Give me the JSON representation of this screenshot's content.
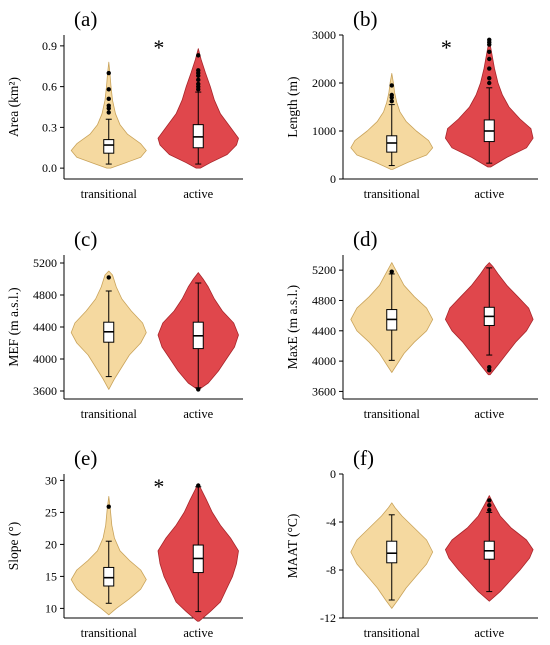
{
  "figure": {
    "categories": [
      "transitional",
      "active"
    ],
    "colors": {
      "transitional": "#f5d9a0",
      "active": "#e0474c",
      "transitional_edge": "#c9a35a",
      "active_edge": "#a8262b"
    }
  },
  "chart_data": [
    {
      "type": "violin",
      "panel_label": "(a)",
      "ylabel": "Area (km²)",
      "ylim": [
        -0.08,
        0.98
      ],
      "yticks": [
        "0.0",
        "0.3",
        "0.6",
        "0.9"
      ],
      "significance": "*",
      "categories": [
        "transitional",
        "active"
      ],
      "series": [
        {
          "name": "transitional",
          "kde_max_width": 0.42,
          "kde": [
            [
              0.0,
              0.05
            ],
            [
              0.03,
              0.35
            ],
            [
              0.08,
              0.85
            ],
            [
              0.13,
              1.0
            ],
            [
              0.18,
              0.85
            ],
            [
              0.25,
              0.5
            ],
            [
              0.32,
              0.3
            ],
            [
              0.4,
              0.18
            ],
            [
              0.5,
              0.1
            ],
            [
              0.6,
              0.06
            ],
            [
              0.7,
              0.03
            ],
            [
              0.78,
              0.0
            ]
          ],
          "box": {
            "whisker_low": 0.03,
            "q1": 0.11,
            "median": 0.17,
            "q3": 0.21,
            "whisker_high": 0.36
          },
          "outliers": [
            0.41,
            0.44,
            0.46,
            0.51,
            0.58,
            0.7
          ]
        },
        {
          "name": "active",
          "kde_max_width": 0.45,
          "kde": [
            [
              0.0,
              0.05
            ],
            [
              0.04,
              0.3
            ],
            [
              0.1,
              0.72
            ],
            [
              0.17,
              0.95
            ],
            [
              0.22,
              1.0
            ],
            [
              0.3,
              0.8
            ],
            [
              0.4,
              0.55
            ],
            [
              0.5,
              0.4
            ],
            [
              0.6,
              0.3
            ],
            [
              0.7,
              0.18
            ],
            [
              0.8,
              0.07
            ],
            [
              0.88,
              0.0
            ]
          ],
          "box": {
            "whisker_low": 0.03,
            "q1": 0.15,
            "median": 0.23,
            "q3": 0.32,
            "whisker_high": 0.56
          },
          "outliers": [
            0.58,
            0.6,
            0.62,
            0.65,
            0.68,
            0.7,
            0.72,
            0.83
          ]
        }
      ]
    },
    {
      "type": "violin",
      "panel_label": "(b)",
      "ylabel": "Length (m)",
      "ylim": [
        0,
        3000
      ],
      "yticks": [
        "0",
        "1000",
        "2000",
        "3000"
      ],
      "significance": "*",
      "categories": [
        "transitional",
        "active"
      ],
      "series": [
        {
          "name": "transitional",
          "kde_max_width": 0.42,
          "kde": [
            [
              200,
              0.02
            ],
            [
              350,
              0.4
            ],
            [
              500,
              0.85
            ],
            [
              650,
              1.0
            ],
            [
              800,
              0.9
            ],
            [
              1000,
              0.6
            ],
            [
              1200,
              0.35
            ],
            [
              1400,
              0.2
            ],
            [
              1600,
              0.12
            ],
            [
              1800,
              0.07
            ],
            [
              2000,
              0.04
            ],
            [
              2200,
              0.0
            ]
          ],
          "box": {
            "whisker_low": 280,
            "q1": 560,
            "median": 750,
            "q3": 900,
            "whisker_high": 1550
          },
          "outliers": [
            1620,
            1700,
            1750,
            1950
          ]
        },
        {
          "name": "active",
          "kde_max_width": 0.45,
          "kde": [
            [
              250,
              0.03
            ],
            [
              450,
              0.4
            ],
            [
              650,
              0.85
            ],
            [
              850,
              1.0
            ],
            [
              1050,
              0.95
            ],
            [
              1250,
              0.7
            ],
            [
              1500,
              0.45
            ],
            [
              1750,
              0.3
            ],
            [
              2000,
              0.2
            ],
            [
              2300,
              0.12
            ],
            [
              2600,
              0.06
            ],
            [
              2900,
              0.0
            ]
          ],
          "box": {
            "whisker_low": 330,
            "q1": 780,
            "median": 1000,
            "q3": 1230,
            "whisker_high": 1900
          },
          "outliers": [
            2000,
            2100,
            2300,
            2500,
            2650,
            2800,
            2850,
            2900
          ]
        }
      ]
    },
    {
      "type": "violin",
      "panel_label": "(c)",
      "ylabel": "MEF (m a.s.l.)",
      "ylim": [
        3500,
        5300
      ],
      "yticks": [
        "3600",
        "4000",
        "4400",
        "4800",
        "5200"
      ],
      "significance": "",
      "categories": [
        "transitional",
        "active"
      ],
      "series": [
        {
          "name": "transitional",
          "kde_max_width": 0.42,
          "kde": [
            [
              3620,
              0.0
            ],
            [
              3750,
              0.15
            ],
            [
              3900,
              0.35
            ],
            [
              4050,
              0.55
            ],
            [
              4200,
              0.85
            ],
            [
              4330,
              1.0
            ],
            [
              4450,
              0.9
            ],
            [
              4600,
              0.6
            ],
            [
              4750,
              0.35
            ],
            [
              4900,
              0.2
            ],
            [
              5050,
              0.1
            ],
            [
              5100,
              0.0
            ]
          ],
          "box": {
            "whisker_low": 3780,
            "q1": 4210,
            "median": 4340,
            "q3": 4460,
            "whisker_high": 4850
          },
          "outliers": [
            5020
          ]
        },
        {
          "name": "active",
          "kde_max_width": 0.45,
          "kde": [
            [
              3620,
              0.02
            ],
            [
              3700,
              0.25
            ],
            [
              3850,
              0.5
            ],
            [
              4000,
              0.7
            ],
            [
              4150,
              0.9
            ],
            [
              4300,
              1.0
            ],
            [
              4450,
              0.88
            ],
            [
              4600,
              0.6
            ],
            [
              4750,
              0.4
            ],
            [
              4900,
              0.25
            ],
            [
              5000,
              0.12
            ],
            [
              5080,
              0.0
            ]
          ],
          "box": {
            "whisker_low": 3640,
            "q1": 4130,
            "median": 4290,
            "q3": 4460,
            "whisker_high": 4950
          },
          "outliers": [
            3620
          ]
        }
      ]
    },
    {
      "type": "violin",
      "panel_label": "(d)",
      "ylabel": "MaxE (m a.s.l.)",
      "ylim": [
        3500,
        5400
      ],
      "yticks": [
        "3600",
        "4000",
        "4400",
        "4800",
        "5200"
      ],
      "significance": "",
      "categories": [
        "transitional",
        "active"
      ],
      "series": [
        {
          "name": "transitional",
          "kde_max_width": 0.42,
          "kde": [
            [
              3850,
              0.0
            ],
            [
              3950,
              0.12
            ],
            [
              4100,
              0.3
            ],
            [
              4250,
              0.55
            ],
            [
              4400,
              0.85
            ],
            [
              4550,
              1.0
            ],
            [
              4700,
              0.85
            ],
            [
              4850,
              0.55
            ],
            [
              5000,
              0.3
            ],
            [
              5150,
              0.15
            ],
            [
              5250,
              0.05
            ],
            [
              5300,
              0.0
            ]
          ],
          "box": {
            "whisker_low": 4010,
            "q1": 4410,
            "median": 4550,
            "q3": 4680,
            "whisker_high": 5150
          },
          "outliers": [
            5180
          ]
        },
        {
          "name": "active",
          "kde_max_width": 0.45,
          "kde": [
            [
              3820,
              0.02
            ],
            [
              3950,
              0.2
            ],
            [
              4100,
              0.4
            ],
            [
              4250,
              0.6
            ],
            [
              4400,
              0.85
            ],
            [
              4550,
              1.0
            ],
            [
              4700,
              0.9
            ],
            [
              4850,
              0.65
            ],
            [
              5000,
              0.4
            ],
            [
              5150,
              0.2
            ],
            [
              5250,
              0.08
            ],
            [
              5300,
              0.0
            ]
          ],
          "box": {
            "whisker_low": 4080,
            "q1": 4470,
            "median": 4590,
            "q3": 4710,
            "whisker_high": 5230
          },
          "outliers": [
            3880,
            3920
          ]
        }
      ]
    },
    {
      "type": "violin",
      "panel_label": "(e)",
      "ylabel": "Slope (°)",
      "ylim": [
        8.5,
        31
      ],
      "yticks": [
        "10",
        "15",
        "20",
        "25",
        "30"
      ],
      "significance": "*",
      "categories": [
        "transitional",
        "active"
      ],
      "series": [
        {
          "name": "transitional",
          "kde_max_width": 0.42,
          "kde": [
            [
              9,
              0.0
            ],
            [
              10,
              0.2
            ],
            [
              11.5,
              0.55
            ],
            [
              13,
              0.85
            ],
            [
              14.5,
              1.0
            ],
            [
              16,
              0.85
            ],
            [
              17.5,
              0.55
            ],
            [
              19,
              0.3
            ],
            [
              21,
              0.15
            ],
            [
              23,
              0.08
            ],
            [
              25.5,
              0.04
            ],
            [
              27.5,
              0.0
            ]
          ],
          "box": {
            "whisker_low": 10.8,
            "q1": 13.5,
            "median": 14.8,
            "q3": 16.4,
            "whisker_high": 20.5
          },
          "outliers": [
            25.9
          ]
        },
        {
          "name": "active",
          "kde_max_width": 0.45,
          "kde": [
            [
              8,
              0.02
            ],
            [
              9.5,
              0.3
            ],
            [
              11,
              0.55
            ],
            [
              13,
              0.7
            ],
            [
              15,
              0.85
            ],
            [
              17,
              0.95
            ],
            [
              19,
              1.0
            ],
            [
              21,
              0.8
            ],
            [
              23,
              0.55
            ],
            [
              25,
              0.35
            ],
            [
              27,
              0.2
            ],
            [
              29.5,
              0.0
            ]
          ],
          "box": {
            "whisker_low": 9.5,
            "q1": 15.6,
            "median": 17.8,
            "q3": 19.9,
            "whisker_high": 29.0
          },
          "outliers": [
            29.2
          ]
        }
      ]
    },
    {
      "type": "violin",
      "panel_label": "(f)",
      "ylabel": "MAAT (°C)",
      "ylim": [
        -12,
        0
      ],
      "yticks": [
        "-12",
        "-8",
        "-4",
        "0"
      ],
      "significance": "",
      "categories": [
        "transitional",
        "active"
      ],
      "series": [
        {
          "name": "transitional",
          "kde_max_width": 0.42,
          "kde": [
            [
              -11.2,
              0.0
            ],
            [
              -10.5,
              0.15
            ],
            [
              -9.5,
              0.35
            ],
            [
              -8.5,
              0.6
            ],
            [
              -7.5,
              0.85
            ],
            [
              -6.5,
              1.0
            ],
            [
              -5.5,
              0.85
            ],
            [
              -4.5,
              0.55
            ],
            [
              -3.5,
              0.25
            ],
            [
              -2.8,
              0.08
            ],
            [
              -2.4,
              0.0
            ]
          ],
          "box": {
            "whisker_low": -10.5,
            "q1": -7.4,
            "median": -6.6,
            "q3": -5.6,
            "whisker_high": -3.4
          },
          "outliers": []
        },
        {
          "name": "active",
          "kde_max_width": 0.45,
          "kde": [
            [
              -10.6,
              0.0
            ],
            [
              -9.8,
              0.25
            ],
            [
              -9.0,
              0.45
            ],
            [
              -8.0,
              0.7
            ],
            [
              -7.0,
              0.92
            ],
            [
              -6.3,
              1.0
            ],
            [
              -5.5,
              0.85
            ],
            [
              -4.5,
              0.5
            ],
            [
              -3.5,
              0.25
            ],
            [
              -2.5,
              0.1
            ],
            [
              -1.8,
              0.0
            ]
          ],
          "box": {
            "whisker_low": -9.8,
            "q1": -7.1,
            "median": -6.4,
            "q3": -5.6,
            "whisker_high": -3.2
          },
          "outliers": [
            -2.2,
            -2.6,
            -3.0
          ]
        }
      ]
    }
  ]
}
